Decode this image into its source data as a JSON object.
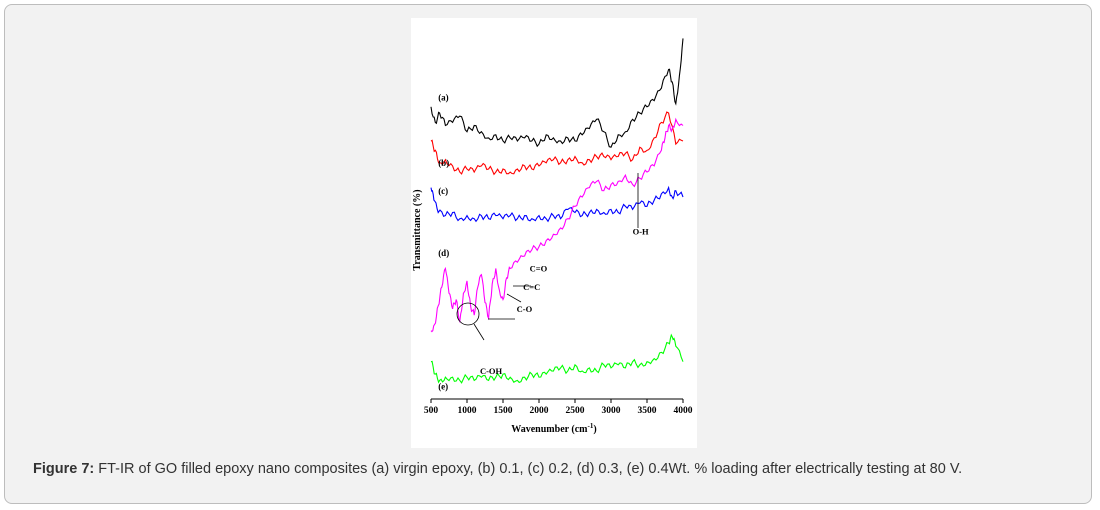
{
  "caption": {
    "lead": "Figure 7:",
    "text": " FT-IR of GO filled epoxy nano composites (a) virgin epoxy, (b) 0.1, (c) 0.2, (d)  0.3, (e) 0.4Wt. % loading after electrically testing at 80 V."
  },
  "chart_data": {
    "type": "line",
    "xlabel": "Wavenumber (cm",
    "xlabel_sup": "-1",
    "xlabel_end": ")",
    "ylabel": "Transmittance (%)",
    "xlim": [
      500,
      4000
    ],
    "xticks": [
      "500",
      "1000",
      "1500",
      "2000",
      "2500",
      "3000",
      "3500",
      "4000"
    ],
    "grid": false,
    "legend": "none (series labels placed beside each trace)",
    "series": [
      {
        "name": "(a)",
        "color": "#000000",
        "x": [
          500,
          560,
          620,
          700,
          800,
          900,
          1000,
          1100,
          1200,
          1300,
          1400,
          1500,
          1600,
          1700,
          1800,
          1900,
          2000,
          2100,
          2200,
          2300,
          2400,
          2500,
          2600,
          2700,
          2800,
          2900,
          3000,
          3100,
          3200,
          3300,
          3400,
          3500,
          3600,
          3700,
          3800,
          3850,
          3900,
          3950,
          4000
        ],
        "y": [
          74,
          69,
          72,
          68,
          69,
          71,
          66,
          68,
          66,
          64,
          65,
          63,
          64,
          63,
          64,
          63,
          62,
          65,
          64,
          63,
          64,
          63,
          65,
          67,
          70,
          66,
          61,
          65,
          66,
          70,
          72,
          74,
          76,
          80,
          86,
          82,
          75,
          84,
          96
        ]
      },
      {
        "name": "(b)",
        "color": "#ff0000",
        "x": [
          500,
          560,
          620,
          700,
          800,
          900,
          1000,
          1100,
          1200,
          1300,
          1400,
          1500,
          1600,
          1700,
          1800,
          1900,
          2000,
          2100,
          2200,
          2300,
          2400,
          2500,
          2600,
          2700,
          2800,
          2900,
          3000,
          3100,
          3200,
          3300,
          3400,
          3500,
          3600,
          3700,
          3800,
          3900,
          4000
        ],
        "y": [
          63,
          60,
          56,
          57,
          55,
          53,
          54,
          53,
          55,
          54,
          53,
          54,
          53,
          54,
          55,
          54,
          55,
          56,
          57,
          56,
          57,
          58,
          56,
          57,
          58,
          58,
          57,
          58,
          59,
          57,
          61,
          60,
          64,
          69,
          72,
          62,
          63
        ]
      },
      {
        "name": "(c)",
        "color": "#0000ff",
        "x": [
          500,
          540,
          600,
          700,
          800,
          900,
          1000,
          1100,
          1200,
          1300,
          1400,
          1500,
          1600,
          1700,
          1800,
          1900,
          2000,
          2100,
          2200,
          2300,
          2400,
          2500,
          2600,
          2700,
          2800,
          2900,
          3000,
          3100,
          3200,
          3300,
          3400,
          3500,
          3600,
          3700,
          3800,
          3850,
          3900,
          4000
        ],
        "y": [
          48,
          44,
          40,
          39,
          40,
          38,
          39,
          38,
          39,
          38,
          39,
          38,
          39,
          38,
          39,
          38,
          39,
          38,
          39,
          38,
          41,
          40,
          39,
          40,
          41,
          40,
          41,
          40,
          42,
          41,
          43,
          42,
          44,
          46,
          48,
          45,
          47,
          45
        ]
      },
      {
        "name": "(d)",
        "color": "#ff00ff",
        "x": [
          500,
          550,
          600,
          650,
          700,
          750,
          800,
          850,
          900,
          950,
          1000,
          1050,
          1100,
          1150,
          1200,
          1250,
          1300,
          1350,
          1400,
          1450,
          1500,
          1550,
          1600,
          1700,
          1800,
          1900,
          2000,
          2100,
          2200,
          2300,
          2400,
          2500,
          2600,
          2700,
          2800,
          2900,
          3000,
          3100,
          3200,
          3300,
          3400,
          3500,
          3600,
          3700,
          3750,
          3800,
          3850,
          3900,
          4000
        ],
        "y": [
          2,
          4,
          10,
          16,
          22,
          14,
          9,
          12,
          5,
          14,
          18,
          10,
          7,
          16,
          20,
          11,
          6,
          17,
          22,
          15,
          12,
          19,
          22,
          24,
          26,
          28,
          29,
          31,
          33,
          35,
          38,
          42,
          45,
          48,
          50,
          47,
          49,
          50,
          52,
          49,
          51,
          53,
          55,
          60,
          64,
          68,
          67,
          70,
          68
        ]
      },
      {
        "name": "(e)",
        "color": "#00ff00",
        "x": [
          500,
          560,
          620,
          700,
          800,
          900,
          1000,
          1100,
          1200,
          1300,
          1400,
          1500,
          1600,
          1700,
          1800,
          1900,
          2000,
          2100,
          2200,
          2300,
          2400,
          2500,
          2600,
          2700,
          2800,
          2900,
          3000,
          3100,
          3200,
          3300,
          3400,
          3500,
          3600,
          3700,
          3800,
          3850,
          3900,
          4000
        ],
        "y": [
          -8,
          -12,
          -14,
          -13,
          -13,
          -14,
          -13,
          -14,
          -13,
          -14,
          -13,
          -12,
          -13,
          -14,
          -13,
          -12,
          -13,
          -12,
          -11,
          -10,
          -11,
          -9,
          -11,
          -10,
          -11,
          -9,
          -10,
          -9,
          -10,
          -8,
          -9,
          -8,
          -7,
          -5,
          -2,
          0,
          -3,
          -8
        ]
      }
    ],
    "series_labels": [
      {
        "text": "(a)",
        "x": 600,
        "y": 76
      },
      {
        "text": "(b)",
        "x": 600,
        "y": 55
      },
      {
        "text": "(c)",
        "x": 600,
        "y": 46
      },
      {
        "text": "(d)",
        "x": 600,
        "y": 26
      },
      {
        "text": "(e)",
        "x": 600,
        "y": -17
      }
    ],
    "annotations": [
      {
        "text": "C=O",
        "x": 1870,
        "y": 21
      },
      {
        "text": "C=C",
        "x": 1780,
        "y": 15
      },
      {
        "text": "C-O",
        "x": 1690,
        "y": 8
      },
      {
        "text": "C-OH",
        "x": 1180,
        "y": -12
      },
      {
        "text": "O-H",
        "x": 3300,
        "y": 33
      }
    ]
  }
}
